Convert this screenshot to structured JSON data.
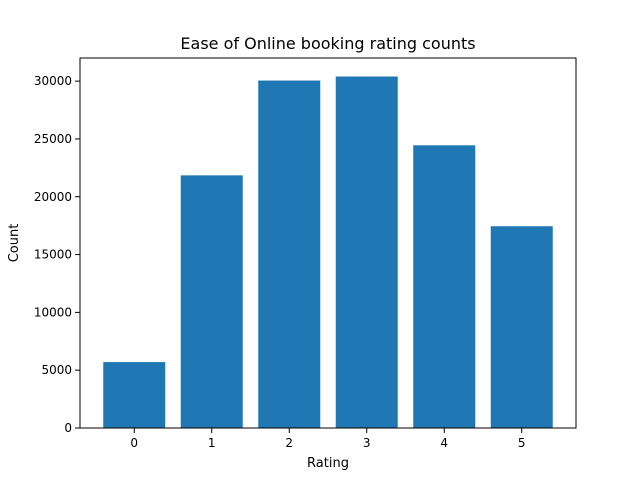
{
  "chart_data": {
    "type": "bar",
    "title": "Ease of Online booking rating counts",
    "xlabel": "Rating",
    "ylabel": "Count",
    "categories": [
      "0",
      "1",
      "2",
      "3",
      "4",
      "5"
    ],
    "values": [
      5700,
      21850,
      30050,
      30400,
      24450,
      17450
    ],
    "ylim": [
      0,
      32000
    ],
    "yticks": [
      0,
      5000,
      10000,
      15000,
      20000,
      25000,
      30000
    ],
    "grid": false,
    "legend": "none",
    "bar_color": "#1f77b4"
  }
}
